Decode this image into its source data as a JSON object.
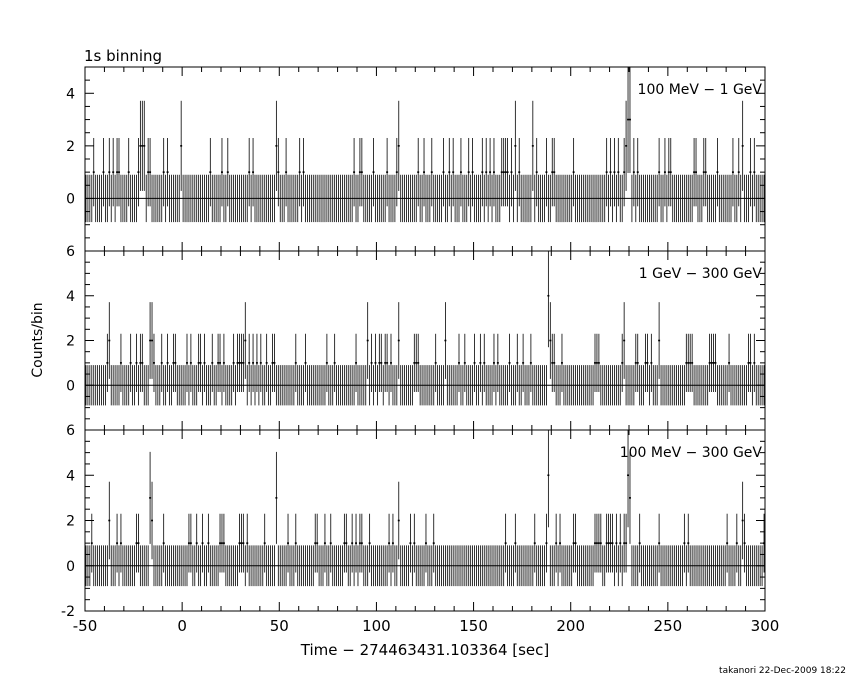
{
  "figure": {
    "binning_label": "1s binning",
    "ylabel": "Counts/bin",
    "xlabel": "Time − 274463431.103364 [sec]",
    "footer": "takanori 22-Dec-2009 18:22",
    "colors": {
      "line": "#000000",
      "background": "#ffffff"
    }
  },
  "chart_data": [
    {
      "type": "line",
      "band": "100 MeV − 1 GeV",
      "xlim": [
        -50,
        300
      ],
      "ylim": [
        -2,
        5
      ],
      "yticks": [
        0,
        2,
        4
      ],
      "bin_width_sec": 1,
      "baseline_counts": 0,
      "error_bar_one_count": [
        -1,
        2.3
      ],
      "peaks": [
        {
          "x": -46,
          "y": 1
        },
        {
          "x": -22,
          "y": 2
        },
        {
          "x": -21,
          "y": 2
        },
        {
          "x": -20,
          "y": 2
        },
        {
          "x": -1,
          "y": 2
        },
        {
          "x": 48,
          "y": 2
        },
        {
          "x": 111,
          "y": 2
        },
        {
          "x": 171,
          "y": 2
        },
        {
          "x": 180,
          "y": 2
        },
        {
          "x": 228,
          "y": 2
        },
        {
          "x": 229,
          "y": 3
        },
        {
          "x": 230,
          "y": 3
        },
        {
          "x": 288,
          "y": 2
        }
      ]
    },
    {
      "type": "line",
      "band": "1 GeV − 300 GeV",
      "xlim": [
        -50,
        300
      ],
      "ylim": [
        -2,
        6
      ],
      "yticks": [
        0,
        2,
        4,
        6
      ],
      "bin_width_sec": 1,
      "baseline_counts": 0,
      "error_bar_one_count": [
        -1,
        2.3
      ],
      "peaks": [
        {
          "x": -38,
          "y": 2
        },
        {
          "x": -17,
          "y": 2
        },
        {
          "x": -16,
          "y": 2
        },
        {
          "x": 32,
          "y": 2
        },
        {
          "x": 95,
          "y": 2
        },
        {
          "x": 111,
          "y": 2
        },
        {
          "x": 135,
          "y": 2
        },
        {
          "x": 188,
          "y": 4
        },
        {
          "x": 189,
          "y": 2
        },
        {
          "x": 227,
          "y": 2
        },
        {
          "x": 245,
          "y": 2
        }
      ]
    },
    {
      "type": "line",
      "band": "100 MeV − 300 GeV",
      "xlim": [
        -50,
        300
      ],
      "ylim": [
        -2,
        6
      ],
      "yticks": [
        -2,
        0,
        2,
        4,
        6
      ],
      "xticks": [
        -50,
        0,
        50,
        100,
        150,
        200,
        250,
        300
      ],
      "bin_width_sec": 1,
      "baseline_counts": 0,
      "error_bar_one_count": [
        -1,
        2.3
      ],
      "peaks": [
        {
          "x": -38,
          "y": 2
        },
        {
          "x": -17,
          "y": 3
        },
        {
          "x": -16,
          "y": 2
        },
        {
          "x": 48,
          "y": 3
        },
        {
          "x": 111,
          "y": 2
        },
        {
          "x": 188,
          "y": 4
        },
        {
          "x": 229,
          "y": 4
        },
        {
          "x": 230,
          "y": 3
        },
        {
          "x": 288,
          "y": 2
        }
      ]
    }
  ]
}
